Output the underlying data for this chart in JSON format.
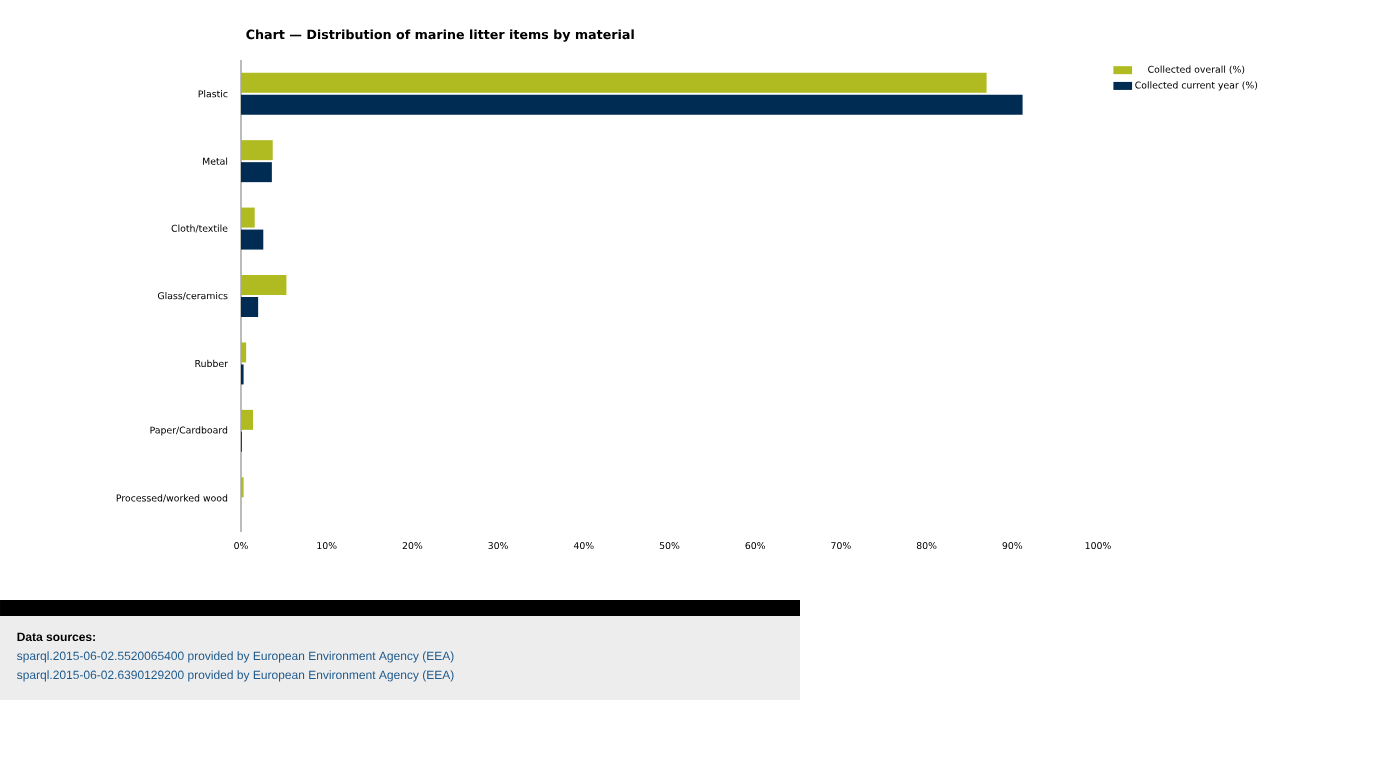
{
  "chart_data": {
    "type": "bar",
    "orientation": "horizontal",
    "title": "Chart — Distribution of marine litter items by material",
    "categories": [
      "Plastic",
      "Metal",
      "Cloth/textile",
      "Glass/ceramics",
      "Rubber",
      "Paper/Cardboard",
      "Processed/worked wood"
    ],
    "series": [
      {
        "name": "Collected overall (%)",
        "color": "#b0bb22",
        "values": [
          87.0,
          3.7,
          1.6,
          5.3,
          0.6,
          1.4,
          0.3
        ]
      },
      {
        "name": "Collected current year (%)",
        "color": "#002b53",
        "values": [
          91.2,
          3.6,
          2.6,
          2.0,
          0.3,
          0.1,
          0
        ]
      }
    ],
    "xlim": [
      0,
      100
    ],
    "xticks": [
      {
        "value": 0,
        "label": "0%"
      },
      {
        "value": 10,
        "label": "10%"
      },
      {
        "value": 20,
        "label": "20%"
      },
      {
        "value": 30,
        "label": "30%"
      },
      {
        "value": 40,
        "label": "40%"
      },
      {
        "value": 50,
        "label": "50%"
      },
      {
        "value": 60,
        "label": "60%"
      },
      {
        "value": 70,
        "label": "70%"
      },
      {
        "value": 80,
        "label": "80%"
      },
      {
        "value": 90,
        "label": "90%"
      },
      {
        "value": 100,
        "label": "100%"
      }
    ],
    "legend": "top right",
    "grid": false,
    "annotations": [
      "Data sources:",
      "sparql.2015-06-02.5520065400 provided by European Environment Agency (EEA)",
      "sparql.2015-06-02.6390129200 provided by European Environment Agency (EEA)"
    ]
  }
}
